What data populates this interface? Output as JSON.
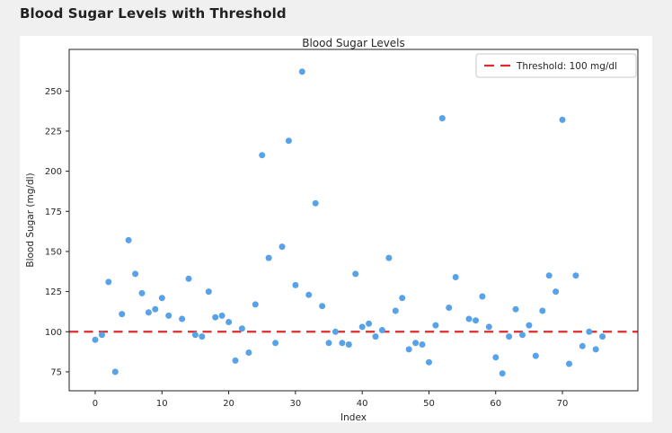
{
  "page": {
    "title": "Blood Sugar Levels with Threshold",
    "background_color": "#f0f0f1",
    "card_color": "#ffffff"
  },
  "chart_data": {
    "type": "scatter",
    "title": "Blood Sugar Levels",
    "xlabel": "Index",
    "ylabel": "Blood Sugar (mg/dl)",
    "xlim": [
      -3.9,
      81.3
    ],
    "ylim": [
      63.2,
      275.9
    ],
    "xticks": [
      0,
      10,
      20,
      30,
      40,
      50,
      60,
      70
    ],
    "yticks": [
      75,
      100,
      125,
      150,
      175,
      200,
      225,
      250
    ],
    "grid": false,
    "point_color": "#57a2e8",
    "axis_color": "#222222",
    "threshold": {
      "value": 100,
      "color": "#dd2c2c",
      "style": "dashed"
    },
    "legend": {
      "position": "upper right",
      "entries": [
        {
          "label": "Threshold: 100 mg/dl",
          "color": "#dd2c2c",
          "dash": true
        }
      ]
    },
    "series": [
      {
        "name": "Blood Sugar",
        "points": [
          [
            0,
            95
          ],
          [
            1,
            98
          ],
          [
            2,
            131
          ],
          [
            3,
            75
          ],
          [
            4,
            111
          ],
          [
            5,
            157
          ],
          [
            6,
            136
          ],
          [
            7,
            124
          ],
          [
            8,
            112
          ],
          [
            9,
            114
          ],
          [
            10,
            121
          ],
          [
            11,
            110
          ],
          [
            13,
            108
          ],
          [
            14,
            133
          ],
          [
            15,
            98
          ],
          [
            16,
            97
          ],
          [
            17,
            125
          ],
          [
            18,
            109
          ],
          [
            19,
            110
          ],
          [
            20,
            106
          ],
          [
            21,
            82
          ],
          [
            22,
            102
          ],
          [
            23,
            87
          ],
          [
            24,
            117
          ],
          [
            25,
            210
          ],
          [
            26,
            146
          ],
          [
            27,
            93
          ],
          [
            28,
            153
          ],
          [
            29,
            219
          ],
          [
            30,
            129
          ],
          [
            31,
            262
          ],
          [
            32,
            123
          ],
          [
            33,
            180
          ],
          [
            34,
            116
          ],
          [
            35,
            93
          ],
          [
            36,
            100
          ],
          [
            37,
            93
          ],
          [
            38,
            92
          ],
          [
            39,
            136
          ],
          [
            40,
            103
          ],
          [
            41,
            105
          ],
          [
            42,
            97
          ],
          [
            43,
            101
          ],
          [
            44,
            146
          ],
          [
            45,
            113
          ],
          [
            46,
            121
          ],
          [
            47,
            89
          ],
          [
            48,
            93
          ],
          [
            49,
            92
          ],
          [
            50,
            81
          ],
          [
            51,
            104
          ],
          [
            52,
            233
          ],
          [
            53,
            115
          ],
          [
            54,
            134
          ],
          [
            56,
            108
          ],
          [
            57,
            107
          ],
          [
            58,
            122
          ],
          [
            59,
            103
          ],
          [
            60,
            84
          ],
          [
            61,
            74
          ],
          [
            62,
            97
          ],
          [
            63,
            114
          ],
          [
            64,
            98
          ],
          [
            65,
            104
          ],
          [
            66,
            85
          ],
          [
            67,
            113
          ],
          [
            68,
            135
          ],
          [
            69,
            125
          ],
          [
            70,
            232
          ],
          [
            71,
            80
          ],
          [
            72,
            135
          ],
          [
            73,
            91
          ],
          [
            74,
            100
          ],
          [
            75,
            89
          ],
          [
            76,
            97
          ]
        ]
      }
    ]
  }
}
